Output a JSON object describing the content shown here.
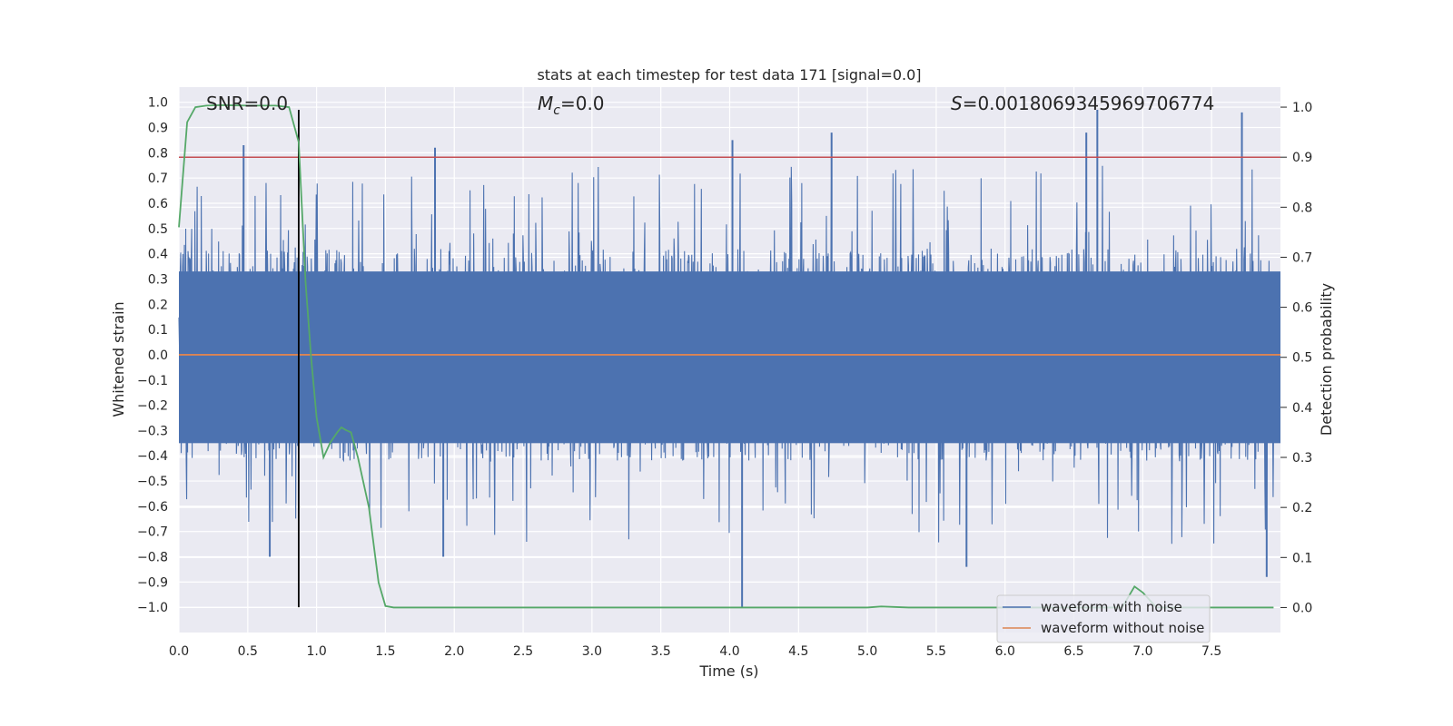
{
  "chart_data": {
    "type": "line",
    "title": "stats at each timestep for test data 171 [signal=0.0]",
    "xlabel": "Time (s)",
    "ylabel": "Whitened strain",
    "ylabel_right": "Detection probability",
    "xlim": [
      0.0,
      8.0
    ],
    "ylim": [
      -1.1,
      1.06
    ],
    "ylim_right": [
      -0.05,
      1.04
    ],
    "x_ticks": [
      0.0,
      0.5,
      1.0,
      1.5,
      2.0,
      2.5,
      3.0,
      3.5,
      4.0,
      4.5,
      5.0,
      5.5,
      6.0,
      6.5,
      7.0,
      7.5
    ],
    "y_ticks": [
      -1.0,
      -0.9,
      -0.8,
      -0.7,
      -0.6,
      -0.5,
      -0.4,
      -0.3,
      -0.2,
      -0.1,
      0.0,
      0.1,
      0.2,
      0.3,
      0.4,
      0.5,
      0.6,
      0.7,
      0.8,
      0.9,
      1.0
    ],
    "y_ticks_right": [
      0.0,
      0.1,
      0.2,
      0.3,
      0.4,
      0.5,
      0.6,
      0.7,
      0.8,
      0.9,
      1.0
    ],
    "grid": true,
    "legend_position": "lower-right",
    "annotations": {
      "snr": "SNR=0.0",
      "mc_symbol": "M",
      "mc_sub": "c",
      "mc_value": "=0.0",
      "s_symbol": "S",
      "s_value": "=0.0018069345969706774"
    },
    "series": [
      {
        "name": "waveform with noise",
        "color": "#4c72b0",
        "axis": "left",
        "description_of_values": "dense noise trace, roughly symmetric about 0, typical amplitude about ±0.4, peaks up to about ±0.95",
        "peak_events": [
          {
            "x": 0.47,
            "y": 0.83
          },
          {
            "x": 1.86,
            "y": 0.82
          },
          {
            "x": 4.02,
            "y": 0.85
          },
          {
            "x": 4.74,
            "y": 0.88
          },
          {
            "x": 6.67,
            "y": 0.97
          },
          {
            "x": 7.72,
            "y": 0.96
          },
          {
            "x": 6.59,
            "y": 0.88
          },
          {
            "x": 0.66,
            "y": -0.8
          },
          {
            "x": 1.92,
            "y": -0.8
          },
          {
            "x": 4.09,
            "y": -1.0
          },
          {
            "x": 5.72,
            "y": -0.84
          },
          {
            "x": 7.9,
            "y": -0.88
          }
        ]
      },
      {
        "name": "waveform without noise",
        "color": "#dd8452",
        "axis": "left",
        "x": [
          0.0,
          8.0
        ],
        "y": [
          0.0,
          0.0
        ]
      },
      {
        "name": "detection probability",
        "color": "#55a868",
        "axis": "right",
        "x": [
          0.0,
          0.06,
          0.12,
          0.2,
          0.3,
          0.5,
          0.7,
          0.8,
          0.87,
          0.92,
          0.96,
          1.0,
          1.05,
          1.1,
          1.15,
          1.18,
          1.21,
          1.25,
          1.3,
          1.38,
          1.45,
          1.5,
          1.56,
          2.0,
          3.0,
          4.0,
          5.0,
          5.1,
          5.3,
          6.0,
          6.5,
          6.85,
          6.94,
          7.0,
          7.1,
          7.5,
          7.95
        ],
        "y": [
          0.76,
          0.97,
          1.0,
          1.003,
          1.004,
          1.003,
          1.003,
          1.0,
          0.93,
          0.65,
          0.5,
          0.38,
          0.3,
          0.33,
          0.35,
          0.36,
          0.355,
          0.35,
          0.3,
          0.2,
          0.05,
          0.003,
          0.0,
          0.0,
          0.0,
          0.0,
          0.0,
          0.002,
          0.0,
          0.0,
          0.0,
          0.0,
          0.042,
          0.03,
          0.0,
          0.0,
          0.0
        ]
      }
    ],
    "reference_lines": [
      {
        "orientation": "horizontal",
        "axis": "right",
        "value": 0.9,
        "color": "#c44e52"
      },
      {
        "orientation": "vertical",
        "x": 0.87,
        "y_range": [
          -1.0,
          0.97
        ],
        "color": "#000000"
      }
    ]
  }
}
